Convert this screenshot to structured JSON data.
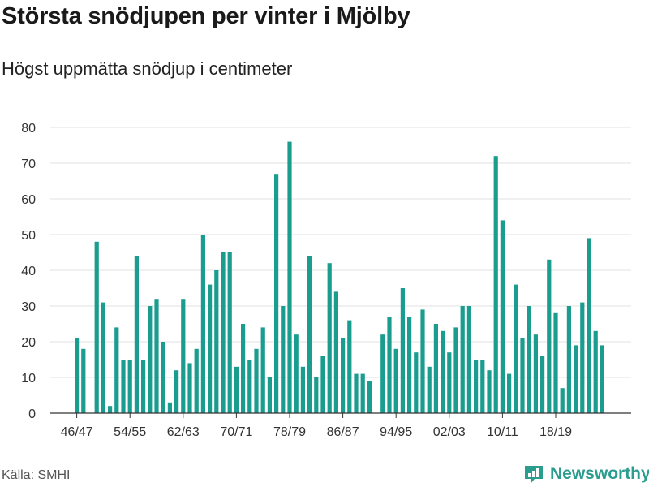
{
  "header": {
    "title": "Största snödjupen per vinter i Mjölby",
    "subtitle": "Högst uppmätta snödjup i centimeter"
  },
  "footer": {
    "source": "Källa: SMHI",
    "brand": "Newsworthy",
    "brand_icon": "newsworthy-logo-icon"
  },
  "colors": {
    "bar": "#1a9c8f",
    "grid": "#e0e0e0",
    "axis": "#333333",
    "brand": "#2a9d8f"
  },
  "chart_data": {
    "type": "bar",
    "ylim": [
      0,
      80
    ],
    "yticks": [
      0,
      10,
      20,
      30,
      40,
      50,
      60,
      70,
      80
    ],
    "grid": true,
    "xtick_labels": [
      "46/47",
      "54/55",
      "62/63",
      "70/71",
      "78/79",
      "86/87",
      "94/95",
      "02/03",
      "10/11",
      "18/19"
    ],
    "categories": [
      "46/47",
      "47/48",
      "48/49",
      "49/50",
      "50/51",
      "51/52",
      "52/53",
      "53/54",
      "54/55",
      "55/56",
      "56/57",
      "57/58",
      "58/59",
      "59/60",
      "60/61",
      "61/62",
      "62/63",
      "63/64",
      "64/65",
      "65/66",
      "66/67",
      "67/68",
      "68/69",
      "69/70",
      "70/71",
      "71/72",
      "72/73",
      "73/74",
      "74/75",
      "75/76",
      "76/77",
      "77/78",
      "78/79",
      "79/80",
      "80/81",
      "81/82",
      "82/83",
      "83/84",
      "84/85",
      "85/86",
      "86/87",
      "87/88",
      "88/89",
      "89/90",
      "90/91",
      "91/92",
      "92/93",
      "93/94",
      "94/95",
      "95/96",
      "96/97",
      "97/98",
      "98/99",
      "99/00",
      "00/01",
      "01/02",
      "02/03",
      "03/04",
      "04/05",
      "05/06",
      "06/07",
      "07/08",
      "08/09",
      "09/10",
      "10/11",
      "11/12",
      "12/13",
      "13/14",
      "14/15",
      "15/16",
      "16/17",
      "17/18",
      "18/19",
      "19/20",
      "20/21",
      "21/22",
      "22/23",
      "23/24",
      "24/25",
      "25/26",
      "26/27"
    ],
    "values": [
      21,
      18,
      null,
      48,
      31,
      2,
      24,
      15,
      15,
      44,
      15,
      30,
      32,
      20,
      3,
      12,
      32,
      14,
      18,
      50,
      36,
      40,
      45,
      45,
      13,
      25,
      15,
      18,
      24,
      10,
      67,
      30,
      76,
      22,
      13,
      44,
      10,
      16,
      42,
      34,
      21,
      26,
      11,
      11,
      9,
      null,
      22,
      27,
      18,
      35,
      27,
      17,
      29,
      13,
      25,
      23,
      17,
      24,
      30,
      30,
      15,
      15,
      12,
      72,
      54,
      11,
      36,
      21,
      30,
      22,
      16,
      43,
      28,
      7,
      30,
      19,
      31,
      49,
      23,
      19,
      null
    ]
  }
}
